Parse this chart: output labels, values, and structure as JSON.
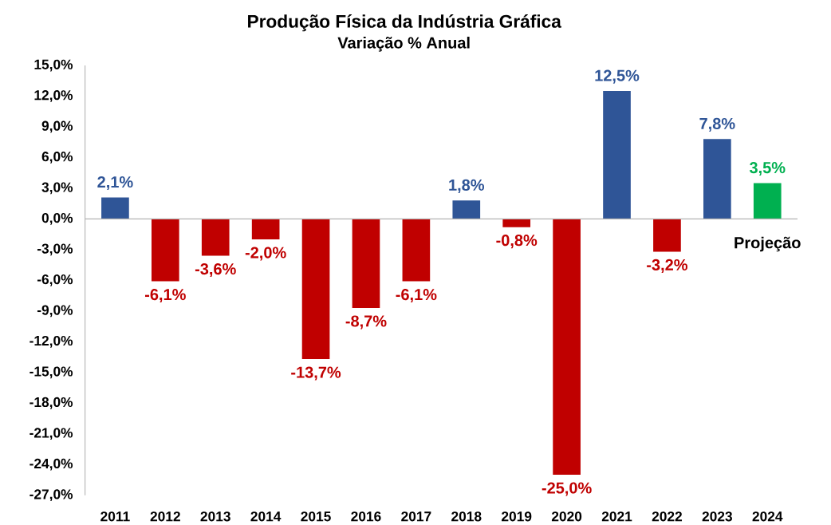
{
  "chart_data": {
    "type": "bar",
    "title": "Produção Física da Indústria Gráfica",
    "subtitle": "Variação % Anual",
    "categories": [
      "2011",
      "2012",
      "2013",
      "2014",
      "2015",
      "2016",
      "2017",
      "2018",
      "2019",
      "2020",
      "2021",
      "2022",
      "2023",
      "2024"
    ],
    "values": [
      2.1,
      -6.1,
      -3.6,
      -2.0,
      -13.7,
      -8.7,
      -6.1,
      1.8,
      -0.8,
      -25.0,
      12.5,
      -3.2,
      7.8,
      3.5
    ],
    "value_labels": [
      "2,1%",
      "-6,1%",
      "-3,6%",
      "-2,0%",
      "-13,7%",
      "-8,7%",
      "-6,1%",
      "1,8%",
      "-0,8%",
      "-25,0%",
      "12,5%",
      "-3,2%",
      "7,8%",
      "3,5%"
    ],
    "colors": [
      "#2f5597",
      "#c00000",
      "#c00000",
      "#c00000",
      "#c00000",
      "#c00000",
      "#c00000",
      "#2f5597",
      "#c00000",
      "#c00000",
      "#2f5597",
      "#c00000",
      "#2f5597",
      "#00b050"
    ],
    "ylim": [
      -27,
      15
    ],
    "yticks": [
      {
        "value": 15,
        "label": "15,0%"
      },
      {
        "value": 12,
        "label": "12,0%"
      },
      {
        "value": 9,
        "label": "9,0%"
      },
      {
        "value": 6,
        "label": "6,0%"
      },
      {
        "value": 3,
        "label": "3,0%"
      },
      {
        "value": 0,
        "label": "0,0%"
      },
      {
        "value": -3,
        "label": "-3,0%"
      },
      {
        "value": -6,
        "label": "-6,0%"
      },
      {
        "value": -9,
        "label": "-9,0%"
      },
      {
        "value": -12,
        "label": "-12,0%"
      },
      {
        "value": -15,
        "label": "-15,0%"
      },
      {
        "value": -18,
        "label": "-18,0%"
      },
      {
        "value": -21,
        "label": "-21,0%"
      },
      {
        "value": -24,
        "label": "-24,0%"
      },
      {
        "value": -27,
        "label": "-27,0%"
      }
    ],
    "annotations": [
      "Projeção"
    ]
  }
}
